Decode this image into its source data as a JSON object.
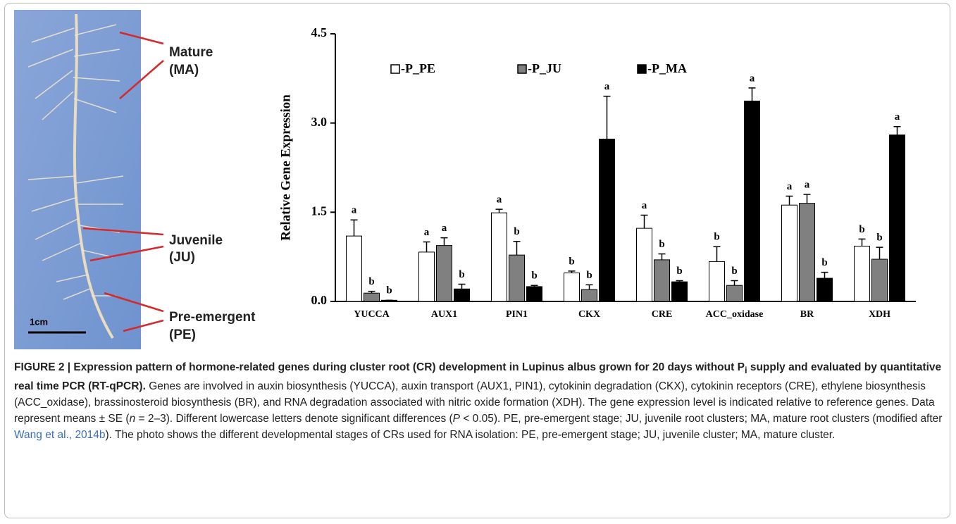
{
  "photo": {
    "labels": [
      "Mature",
      "(MA)",
      "Juvenile",
      "(JU)",
      "Pre-emergent",
      "(PE)"
    ],
    "scale_bar": "1cm"
  },
  "chart_data": {
    "type": "bar",
    "ylabel": "Relative Gene Expression",
    "categories": [
      "YUCCA",
      "AUX1",
      "PIN1",
      "CKX",
      "CRE",
      "ACC_oxidase",
      "BR",
      "XDH"
    ],
    "series": [
      {
        "name": "-P_PE",
        "color": "#ffffff",
        "values": [
          1.1,
          0.83,
          1.49,
          0.48,
          1.23,
          0.67,
          1.62,
          0.93
        ],
        "errors": [
          0.27,
          0.17,
          0.06,
          0.03,
          0.22,
          0.25,
          0.15,
          0.12
        ],
        "letters": [
          "a",
          "a",
          "a",
          "b",
          "a",
          "b",
          "a",
          "b"
        ]
      },
      {
        "name": "-P_JU",
        "color": "#808080",
        "values": [
          0.14,
          0.94,
          0.78,
          0.2,
          0.7,
          0.27,
          1.65,
          0.71
        ],
        "errors": [
          0.03,
          0.13,
          0.23,
          0.08,
          0.1,
          0.08,
          0.15,
          0.2
        ],
        "letters": [
          "b",
          "a",
          "b",
          "b",
          "b",
          "b",
          "a",
          "b"
        ]
      },
      {
        "name": "-P_MA",
        "color": "#000000",
        "values": [
          0.02,
          0.21,
          0.25,
          2.73,
          0.33,
          3.37,
          0.39,
          2.8
        ],
        "errors": [
          0.0,
          0.08,
          0.02,
          0.72,
          0.02,
          0.22,
          0.1,
          0.14
        ],
        "letters": [
          "b",
          "b",
          "b",
          "a",
          "b",
          "a",
          "b",
          "a"
        ]
      }
    ],
    "ylim": [
      0,
      4.5
    ],
    "yticks": [
      {
        "value": 0,
        "label": "0.0"
      },
      1.5,
      {
        "value": 3,
        "label": "3.0"
      },
      4.5
    ]
  },
  "caption": {
    "title": [
      "FIGURE 2 | Expression pattern of hormone-related genes during cluster root (CR) development in Lupinus albus grown for 20 days without P",
      "i",
      " supply and evaluated by quantitative real time PCR (RT-qPCR)."
    ],
    "body": [
      " Genes are involved in auxin biosynthesis (YUCCA), auxin transport (AUX1, PIN1), cytokinin degradation (CKX), cytokinin receptors (CRE), ethylene biosynthesis (ACC_oxidase), brassinosteroid biosynthesis (BR), and RNA degradation associated with nitric oxide formation (XDH). The gene expression level is indicated relative to reference genes. Data represent means ± SE (",
      "n",
      " = 2–3). Different lowercase letters denote significant differences (",
      "P",
      " < 0.05). PE, pre-emergent stage; JU, juvenile root clusters; MA, mature root clusters (modified after ",
      "Wang et al., 2014b",
      "). The photo shows the different developmental stages of CRs used for RNA isolation: PE, pre-emergent stage; JU, juvenile cluster; MA, mature cluster."
    ]
  }
}
